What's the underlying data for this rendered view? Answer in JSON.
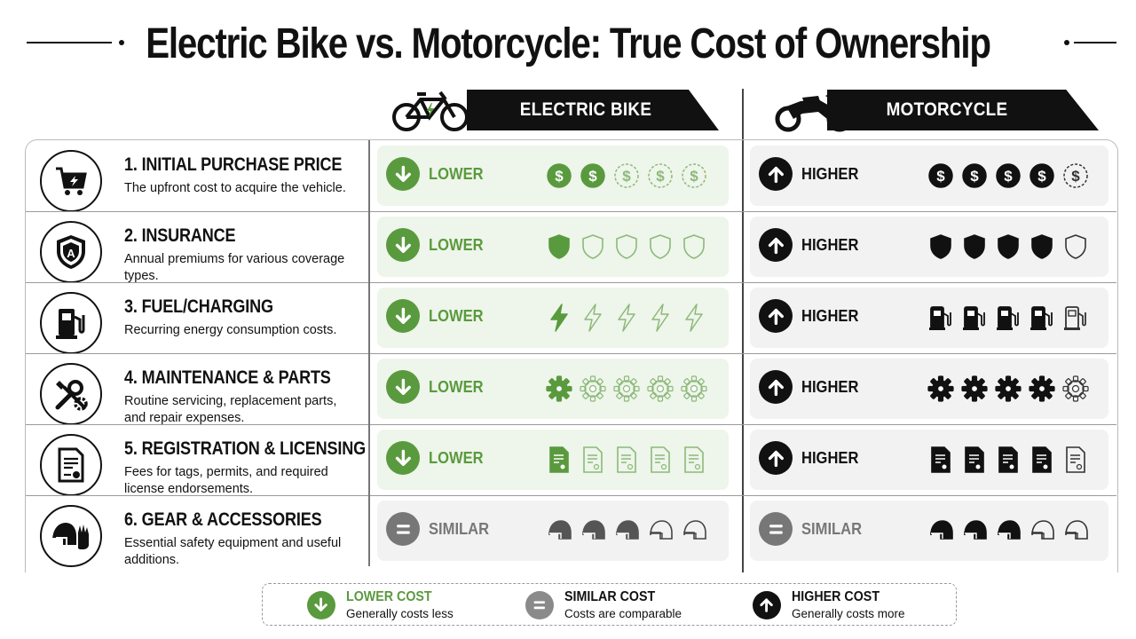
{
  "title": "Electric Bike vs. Motorcycle: True Cost of Ownership",
  "columns": {
    "ebike": "ELECTRIC BIKE",
    "moto": "MOTORCYCLE"
  },
  "colors": {
    "green": "#5a9a3e",
    "gray": "#6e6e6e",
    "black": "#111111"
  },
  "rows": [
    {
      "title": "1. INITIAL PURCHASE PRICE",
      "desc": "The upfront cost to acquire the vehicle.",
      "icon": "cart-lightning-icon",
      "ebike": {
        "status": "LOWER",
        "level": 2,
        "glyph": "dollar"
      },
      "moto": {
        "status": "HIGHER",
        "level": 4,
        "glyph": "dollar"
      }
    },
    {
      "title": "2. INSURANCE",
      "desc": "Annual premiums for various coverage types.",
      "icon": "shield-icon",
      "ebike": {
        "status": "LOWER",
        "level": 1,
        "glyph": "shield"
      },
      "moto": {
        "status": "HIGHER",
        "level": 4,
        "glyph": "shield"
      }
    },
    {
      "title": "3. FUEL/CHARGING",
      "desc": "Recurring energy consumption costs.",
      "icon": "fuel-pump-icon",
      "ebike": {
        "status": "LOWER",
        "level": 1,
        "glyph": "bolt"
      },
      "moto": {
        "status": "HIGHER",
        "level": 4,
        "glyph": "fuel"
      }
    },
    {
      "title": "4. MAINTENANCE & PARTS",
      "desc": "Routine servicing, replacement parts, and repair expenses.",
      "icon": "wrench-gear-icon",
      "ebike": {
        "status": "LOWER",
        "level": 1,
        "glyph": "gear"
      },
      "moto": {
        "status": "HIGHER",
        "level": 4,
        "glyph": "gear"
      }
    },
    {
      "title": "5. REGISTRATION & LICENSING",
      "desc": "Fees for tags, permits, and required license endorsements.",
      "icon": "document-icon",
      "ebike": {
        "status": "LOWER",
        "level": 1,
        "glyph": "doc"
      },
      "moto": {
        "status": "HIGHER",
        "level": 4,
        "glyph": "doc"
      }
    },
    {
      "title": "6. GEAR & ACCESSORIES",
      "desc": "Essential safety equipment and useful additions.",
      "icon": "helmet-glove-icon",
      "ebike": {
        "status": "SIMILAR",
        "level": 3,
        "glyph": "helmet"
      },
      "moto": {
        "status": "SIMILAR",
        "level": 3,
        "glyph": "helmet"
      }
    }
  ],
  "legend": [
    {
      "kind": "LOWER",
      "title": "LOWER COST",
      "sub": "Generally costs less"
    },
    {
      "kind": "SIMILAR",
      "title": "SIMILAR COST",
      "sub": "Costs are comparable"
    },
    {
      "kind": "HIGHER",
      "title": "HIGHER COST",
      "sub": "Generally costs more"
    }
  ]
}
